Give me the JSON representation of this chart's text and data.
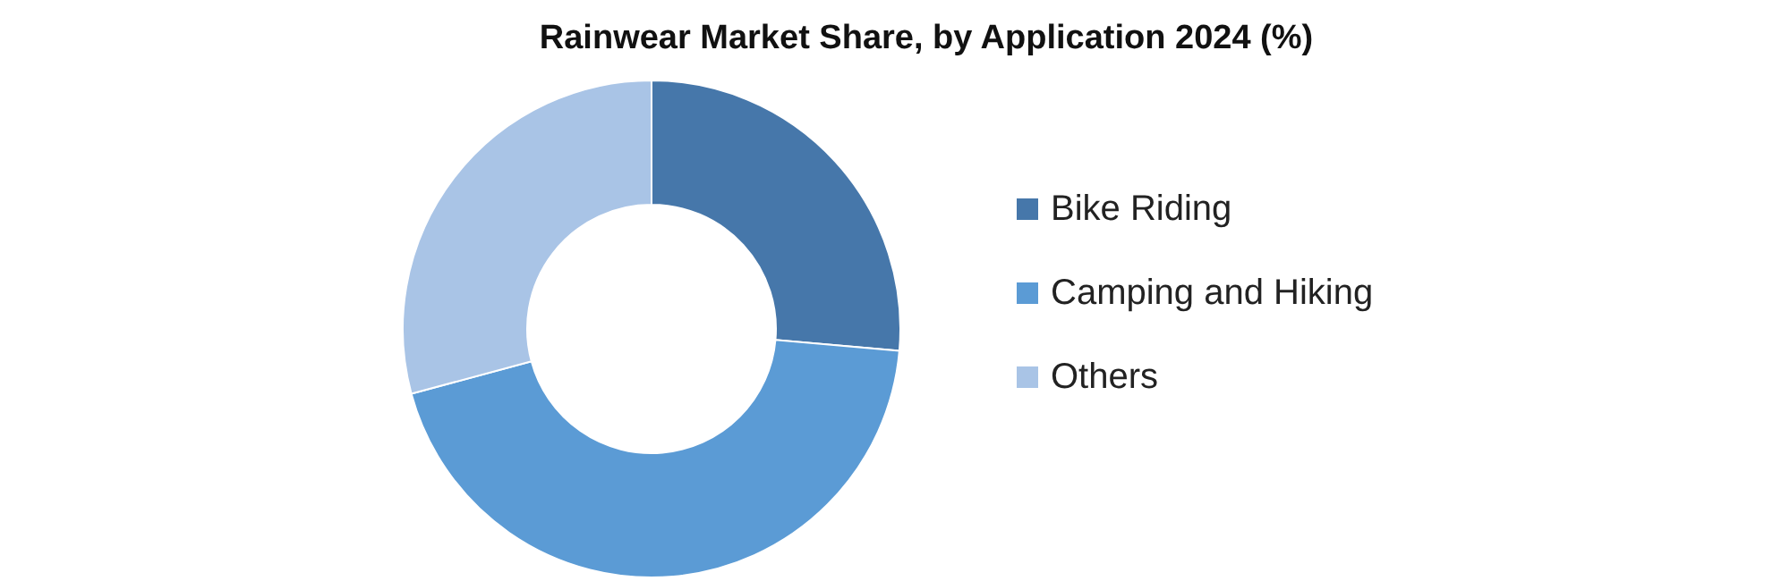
{
  "chart_data": {
    "type": "donut",
    "title": "Rainwear Market Share, by Application 2024 (%)",
    "categories": [
      "Bike Riding",
      "Camping and Hiking",
      "Others"
    ],
    "values": [
      26.4,
      44.4,
      29.2
    ],
    "colors": [
      "#4677aa",
      "#5b9bd5",
      "#a9c4e6"
    ],
    "legend": "right"
  }
}
